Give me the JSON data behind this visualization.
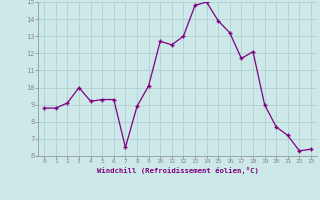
{
  "x": [
    0,
    1,
    2,
    3,
    4,
    5,
    6,
    7,
    8,
    9,
    10,
    11,
    12,
    13,
    14,
    15,
    16,
    17,
    18,
    19,
    20,
    21,
    22,
    23
  ],
  "y": [
    8.8,
    8.8,
    9.1,
    10.0,
    9.2,
    9.3,
    9.3,
    6.5,
    8.9,
    10.1,
    12.7,
    12.5,
    13.0,
    14.8,
    15.0,
    13.9,
    13.2,
    11.7,
    12.1,
    9.0,
    7.7,
    7.2,
    6.3,
    6.4
  ],
  "xlim": [
    -0.5,
    23.5
  ],
  "ylim": [
    6,
    15
  ],
  "yticks": [
    6,
    7,
    8,
    9,
    10,
    11,
    12,
    13,
    14,
    15
  ],
  "xticks": [
    0,
    1,
    2,
    3,
    4,
    5,
    6,
    7,
    8,
    9,
    10,
    11,
    12,
    13,
    14,
    15,
    16,
    17,
    18,
    19,
    20,
    21,
    22,
    23
  ],
  "xlabel": "Windchill (Refroidissement éolien,°C)",
  "line_color": "#800080",
  "marker_color": "#800080",
  "bg_color": "#cce8e8",
  "grid_color": "#aacccc",
  "text_color": "#800080",
  "spine_color": "#888888"
}
